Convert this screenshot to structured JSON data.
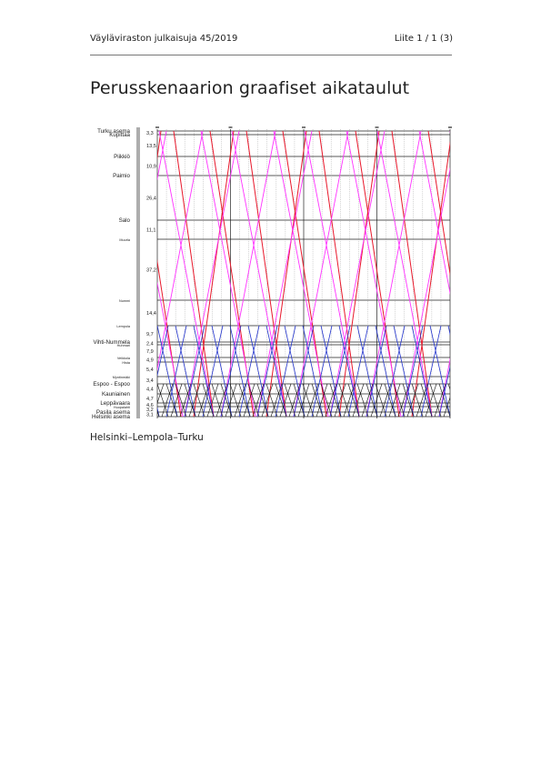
{
  "header": {
    "publication": "Väyläviraston julkaisuja 45/2019",
    "appendix": "Liite 1 / 1 (3)"
  },
  "title": "Perusskenaarion graafiset aikataulut",
  "caption": "Helsinki–Lempola–Turku",
  "timetable": {
    "stations": [
      {
        "name": "Turku asema",
        "size": "lg"
      },
      {
        "name": "Kupittaa",
        "size": "lg"
      },
      {
        "name": "Piikkiö",
        "size": "lg"
      },
      {
        "name": "Paimio",
        "size": "lg"
      },
      {
        "name": "Salo",
        "size": "lg"
      },
      {
        "name": "Muurla",
        "size": "sm"
      },
      {
        "name": "Nummi",
        "size": "sm"
      },
      {
        "name": "Lempola",
        "size": "sm"
      },
      {
        "name": "Vihti-Nummela",
        "size": "lg"
      },
      {
        "name": "Huhmari",
        "size": "sm"
      },
      {
        "name": "Veikkola",
        "size": "sm"
      },
      {
        "name": "Hista",
        "size": "sm"
      },
      {
        "name": "Myntinmäki",
        "size": "sm"
      },
      {
        "name": "Espoo - Espoo",
        "size": "lg"
      },
      {
        "name": "Kauniainen",
        "size": "lg"
      },
      {
        "name": "Leppävaara",
        "size": "lg"
      },
      {
        "name": "Huopalahti",
        "size": "sm"
      },
      {
        "name": "Pasila asema",
        "size": "lg"
      },
      {
        "name": "Helsinki asema",
        "size": "lg"
      }
    ],
    "distances": [
      "3,3",
      "13,5",
      "10,9",
      "26,4",
      "11,1",
      "37,2",
      "14,4",
      "9,7",
      "2,4",
      "7,9",
      "4,9",
      "5,4",
      "3,4",
      "4,4",
      "4,7",
      "4,6",
      "3,2",
      "3,1"
    ],
    "colors": {
      "turku_service": "#e8192c",
      "fast_service": "#ff33ff",
      "lempola_service": "#2233cc",
      "local_service": "#111111",
      "grid_major": "#222222",
      "grid_minor": "#888888"
    }
  }
}
